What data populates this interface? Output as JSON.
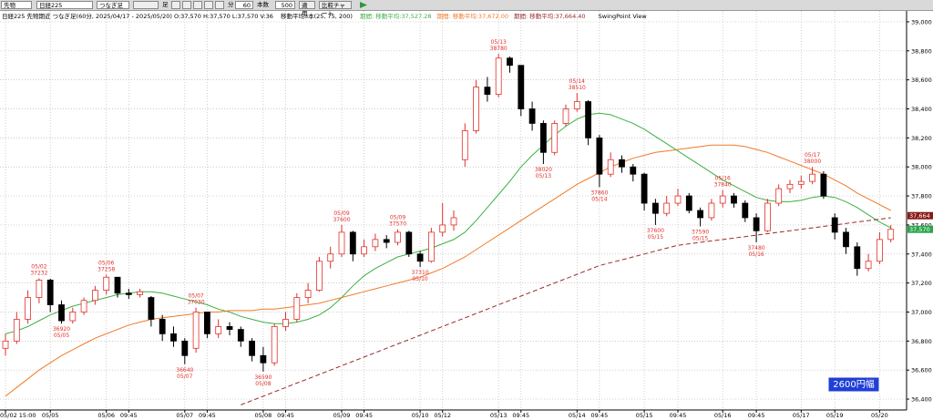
{
  "toolbar": {
    "symbol_kind": "先物",
    "symbol": "日経225",
    "series_kind": "つなぎ足",
    "bar_unit_label": "足",
    "minute_label": "分",
    "period": "60",
    "count_label": "本数",
    "count": "500",
    "apply": "適用",
    "compare": "比較チャート"
  },
  "chart_data": {
    "type": "candlestick",
    "title": "日経225 先物期近 つなぎ足(60分, 2025/04/17 - 2025/05/20) O:37,570 H:37,570 L:37,570 V:36",
    "subtitle": "移動平均3本(25, 75, 200)",
    "view_label": "SwingPoint View",
    "badge": "2600円幅",
    "up_color": "#e0302a",
    "down_color": "#000000",
    "ylim": [
      36325,
      39075
    ],
    "yticks": [
      {
        "value": 36400,
        "label": "36,400"
      },
      {
        "value": 36600,
        "label": "36,600"
      },
      {
        "value": 36800,
        "label": "36,800"
      },
      {
        "value": 37000,
        "label": "37,000"
      },
      {
        "value": 37200,
        "label": "37,200"
      },
      {
        "value": 37400,
        "label": "37,400"
      },
      {
        "value": 37600,
        "label": "37,600"
      },
      {
        "value": 37800,
        "label": "37,800"
      },
      {
        "value": 38000,
        "label": "38,000"
      },
      {
        "value": 38200,
        "label": "38,200"
      },
      {
        "value": 38400,
        "label": "38,400"
      },
      {
        "value": 38600,
        "label": "38,600"
      },
      {
        "value": 38800,
        "label": "38,800"
      },
      {
        "value": 39000,
        "label": "39,000"
      }
    ],
    "grid": true,
    "categories": [
      "05/02 15:00",
      null,
      null,
      null,
      "05/05",
      null,
      null,
      null,
      null,
      "05/06",
      null,
      "09:45",
      null,
      null,
      null,
      null,
      "05/07",
      null,
      "09:45",
      null,
      null,
      null,
      null,
      "05/08",
      null,
      "09:45",
      null,
      null,
      null,
      null,
      "05/09",
      null,
      "09:45",
      null,
      null,
      null,
      null,
      "05/10",
      null,
      "05/12",
      null,
      null,
      null,
      null,
      "05/13",
      null,
      "09:45",
      null,
      null,
      null,
      null,
      "05/14",
      null,
      "09:45",
      null,
      null,
      null,
      "05/15",
      null,
      null,
      "09:45",
      null,
      null,
      null,
      "05/16",
      null,
      null,
      "09:45",
      null,
      null,
      null,
      "05/17",
      null,
      null,
      "05/19",
      null,
      null,
      null,
      "05/20",
      null
    ],
    "candles": [
      {
        "o": 36750,
        "h": 36850,
        "l": 36700,
        "c": 36800
      },
      {
        "o": 36800,
        "h": 37000,
        "l": 36780,
        "c": 36950
      },
      {
        "o": 36950,
        "h": 37150,
        "l": 36920,
        "c": 37100
      },
      {
        "o": 37100,
        "h": 37232,
        "l": 37060,
        "c": 37220,
        "swing": {
          "date": "05/02",
          "price": 37232
        }
      },
      {
        "o": 37220,
        "h": 37230,
        "l": 37000,
        "c": 37050
      },
      {
        "o": 37050,
        "h": 37080,
        "l": 36920,
        "c": 36940,
        "swing": {
          "date": "05/05",
          "price": 36920
        }
      },
      {
        "o": 36940,
        "h": 37030,
        "l": 36920,
        "c": 37000
      },
      {
        "o": 37000,
        "h": 37100,
        "l": 36980,
        "c": 37080
      },
      {
        "o": 37080,
        "h": 37180,
        "l": 37050,
        "c": 37150
      },
      {
        "o": 37150,
        "h": 37258,
        "l": 37120,
        "c": 37240,
        "swing": {
          "date": "05/06",
          "price": 37258
        }
      },
      {
        "o": 37240,
        "h": 37240,
        "l": 37100,
        "c": 37130
      },
      {
        "o": 37130,
        "h": 37160,
        "l": 37090,
        "c": 37120
      },
      {
        "o": 37120,
        "h": 37160,
        "l": 37100,
        "c": 37140
      },
      {
        "o": 37100,
        "h": 37110,
        "l": 36900,
        "c": 36950
      },
      {
        "o": 36950,
        "h": 36980,
        "l": 36800,
        "c": 36850
      },
      {
        "o": 36850,
        "h": 36900,
        "l": 36760,
        "c": 36800
      },
      {
        "o": 36800,
        "h": 36820,
        "l": 36640,
        "c": 36700,
        "swing": {
          "date": "05/07",
          "price": 36640
        }
      },
      {
        "o": 36750,
        "h": 37030,
        "l": 36720,
        "c": 37000,
        "swing": {
          "date": "05/07",
          "price": 37030
        }
      },
      {
        "o": 37000,
        "h": 37000,
        "l": 36820,
        "c": 36850
      },
      {
        "o": 36850,
        "h": 36950,
        "l": 36820,
        "c": 36900
      },
      {
        "o": 36900,
        "h": 36930,
        "l": 36840,
        "c": 36880
      },
      {
        "o": 36880,
        "h": 36900,
        "l": 36760,
        "c": 36800
      },
      {
        "o": 36800,
        "h": 36820,
        "l": 36660,
        "c": 36700
      },
      {
        "o": 36700,
        "h": 36760,
        "l": 36590,
        "c": 36650,
        "swing": {
          "date": "05/08",
          "price": 36590
        }
      },
      {
        "o": 36650,
        "h": 36920,
        "l": 36630,
        "c": 36900
      },
      {
        "o": 36900,
        "h": 37000,
        "l": 36870,
        "c": 36950
      },
      {
        "o": 36950,
        "h": 37130,
        "l": 36930,
        "c": 37100
      },
      {
        "o": 37100,
        "h": 37200,
        "l": 37060,
        "c": 37150
      },
      {
        "o": 37150,
        "h": 37380,
        "l": 37140,
        "c": 37350
      },
      {
        "o": 37350,
        "h": 37450,
        "l": 37300,
        "c": 37400
      },
      {
        "o": 37400,
        "h": 37600,
        "l": 37380,
        "c": 37550,
        "swing": {
          "date": "05/09",
          "price": 37600
        }
      },
      {
        "o": 37550,
        "h": 37560,
        "l": 37350,
        "c": 37400
      },
      {
        "o": 37400,
        "h": 37500,
        "l": 37380,
        "c": 37450
      },
      {
        "o": 37450,
        "h": 37540,
        "l": 37420,
        "c": 37500
      },
      {
        "o": 37500,
        "h": 37530,
        "l": 37440,
        "c": 37480
      },
      {
        "o": 37480,
        "h": 37570,
        "l": 37460,
        "c": 37550,
        "swing": {
          "date": "05/09",
          "price": 37570
        }
      },
      {
        "o": 37550,
        "h": 37560,
        "l": 37380,
        "c": 37400
      },
      {
        "o": 37400,
        "h": 37420,
        "l": 37310,
        "c": 37350,
        "swing": {
          "date": "05/10",
          "price": 37310
        }
      },
      {
        "o": 37350,
        "h": 37580,
        "l": 37340,
        "c": 37550
      },
      {
        "o": 37550,
        "h": 37750,
        "l": 37520,
        "c": 37600
      },
      {
        "o": 37600,
        "h": 37700,
        "l": 37560,
        "c": 37650
      },
      {
        "o": 38050,
        "h": 38300,
        "l": 38000,
        "c": 38250
      },
      {
        "o": 38250,
        "h": 38600,
        "l": 38230,
        "c": 38550
      },
      {
        "o": 38550,
        "h": 38620,
        "l": 38450,
        "c": 38500
      },
      {
        "o": 38500,
        "h": 38780,
        "l": 38480,
        "c": 38750,
        "swing": {
          "date": "05/13",
          "price": 38780
        }
      },
      {
        "o": 38750,
        "h": 38760,
        "l": 38650,
        "c": 38700
      },
      {
        "o": 38700,
        "h": 38700,
        "l": 38350,
        "c": 38400
      },
      {
        "o": 38400,
        "h": 38450,
        "l": 38250,
        "c": 38300
      },
      {
        "o": 38300,
        "h": 38320,
        "l": 38020,
        "c": 38100,
        "swing": {
          "date": "05/13",
          "price": 38020
        }
      },
      {
        "o": 38100,
        "h": 38320,
        "l": 38080,
        "c": 38300
      },
      {
        "o": 38300,
        "h": 38430,
        "l": 38280,
        "c": 38400
      },
      {
        "o": 38400,
        "h": 38510,
        "l": 38380,
        "c": 38450,
        "swing": {
          "date": "05/14",
          "price": 38510
        }
      },
      {
        "o": 38450,
        "h": 38460,
        "l": 38150,
        "c": 38200
      },
      {
        "o": 38200,
        "h": 38220,
        "l": 37860,
        "c": 37950,
        "swing": {
          "date": "05/14",
          "price": 37860
        }
      },
      {
        "o": 37950,
        "h": 38100,
        "l": 37930,
        "c": 38050
      },
      {
        "o": 38050,
        "h": 38080,
        "l": 37960,
        "c": 38000
      },
      {
        "o": 38000,
        "h": 38020,
        "l": 37900,
        "c": 37950
      },
      {
        "o": 37950,
        "h": 37960,
        "l": 37700,
        "c": 37750
      },
      {
        "o": 37750,
        "h": 37780,
        "l": 37600,
        "c": 37680,
        "swing": {
          "date": "05/15",
          "price": 37600
        }
      },
      {
        "o": 37680,
        "h": 37800,
        "l": 37660,
        "c": 37750
      },
      {
        "o": 37750,
        "h": 37850,
        "l": 37730,
        "c": 37800
      },
      {
        "o": 37800,
        "h": 37820,
        "l": 37680,
        "c": 37700
      },
      {
        "o": 37700,
        "h": 37720,
        "l": 37590,
        "c": 37650,
        "swing": {
          "date": "05/15",
          "price": 37590
        }
      },
      {
        "o": 37650,
        "h": 37780,
        "l": 37630,
        "c": 37750
      },
      {
        "o": 37750,
        "h": 37840,
        "l": 37720,
        "c": 37800,
        "swing": {
          "date": "05/16",
          "price": 37840
        }
      },
      {
        "o": 37800,
        "h": 37820,
        "l": 37720,
        "c": 37750
      },
      {
        "o": 37750,
        "h": 37770,
        "l": 37620,
        "c": 37650
      },
      {
        "o": 37650,
        "h": 37680,
        "l": 37480,
        "c": 37560,
        "swing": {
          "date": "05/16",
          "price": 37480
        }
      },
      {
        "o": 37560,
        "h": 37780,
        "l": 37550,
        "c": 37750
      },
      {
        "o": 37750,
        "h": 37880,
        "l": 37730,
        "c": 37850
      },
      {
        "o": 37850,
        "h": 37910,
        "l": 37820,
        "c": 37880
      },
      {
        "o": 37880,
        "h": 37940,
        "l": 37850,
        "c": 37900
      },
      {
        "o": 37900,
        "h": 38000,
        "l": 37880,
        "c": 37950,
        "swing": {
          "date": "05/17",
          "price": 38000
        }
      },
      {
        "o": 37950,
        "h": 37970,
        "l": 37780,
        "c": 37800
      },
      {
        "o": 37650,
        "h": 37680,
        "l": 37500,
        "c": 37550
      },
      {
        "o": 37550,
        "h": 37580,
        "l": 37400,
        "c": 37450
      },
      {
        "o": 37450,
        "h": 37480,
        "l": 37250,
        "c": 37300
      },
      {
        "o": 37300,
        "h": 37400,
        "l": 37280,
        "c": 37350
      },
      {
        "o": 37350,
        "h": 37550,
        "l": 37330,
        "c": 37500
      },
      {
        "o": 37500,
        "h": 37600,
        "l": 37480,
        "c": 37570
      }
    ],
    "series": [
      {
        "name": "期間: 移動平均:37,527.28",
        "color": "#3cb043",
        "dashed": false,
        "values": [
          36850,
          36870,
          36900,
          36940,
          36980,
          37010,
          37040,
          37060,
          37080,
          37100,
          37120,
          37130,
          37140,
          37140,
          37130,
          37110,
          37090,
          37070,
          37050,
          37020,
          37000,
          36970,
          36950,
          36930,
          36920,
          36920,
          36930,
          36950,
          36980,
          37030,
          37100,
          37180,
          37250,
          37300,
          37340,
          37380,
          37400,
          37420,
          37440,
          37470,
          37500,
          37550,
          37630,
          37720,
          37810,
          37900,
          38000,
          38080,
          38150,
          38220,
          38280,
          38330,
          38360,
          38370,
          38360,
          38330,
          38300,
          38260,
          38210,
          38160,
          38110,
          38060,
          38010,
          37960,
          37910,
          37870,
          37830,
          37790,
          37770,
          37760,
          37760,
          37770,
          37790,
          37800,
          37790,
          37760,
          37720,
          37670,
          37620,
          37580
        ]
      },
      {
        "name": "期間: 移動平均:37,672.00",
        "color": "#f07a2a",
        "dashed": false,
        "values": [
          36420,
          36480,
          36540,
          36600,
          36650,
          36700,
          36740,
          36780,
          36820,
          36850,
          36880,
          36910,
          36930,
          36950,
          36960,
          36970,
          36980,
          36990,
          37000,
          37000,
          37010,
          37010,
          37010,
          37020,
          37020,
          37030,
          37040,
          37050,
          37060,
          37080,
          37100,
          37120,
          37140,
          37160,
          37180,
          37200,
          37220,
          37240,
          37270,
          37300,
          37340,
          37380,
          37430,
          37480,
          37530,
          37580,
          37630,
          37680,
          37730,
          37780,
          37830,
          37880,
          37920,
          37960,
          38000,
          38030,
          38060,
          38080,
          38100,
          38110,
          38120,
          38130,
          38140,
          38150,
          38150,
          38150,
          38140,
          38120,
          38100,
          38070,
          38040,
          38010,
          37980,
          37950,
          37910,
          37870,
          37820,
          37780,
          37740,
          37700
        ]
      },
      {
        "name": "期間: 移動平均:37,664.40",
        "color": "#9b2a2a",
        "dashed": true,
        "values": [
          null,
          null,
          null,
          null,
          null,
          null,
          null,
          null,
          null,
          null,
          null,
          null,
          null,
          null,
          null,
          null,
          null,
          null,
          null,
          null,
          null,
          36360,
          36390,
          36420,
          36450,
          36480,
          36510,
          36540,
          36570,
          36600,
          36630,
          36660,
          36690,
          36720,
          36750,
          36780,
          36810,
          36840,
          36870,
          36900,
          36930,
          36960,
          36990,
          37020,
          37050,
          37080,
          37110,
          37140,
          37170,
          37200,
          37230,
          37260,
          37290,
          37320,
          37340,
          37360,
          37380,
          37400,
          37420,
          37440,
          37460,
          37470,
          37480,
          37490,
          37500,
          37510,
          37520,
          37530,
          37540,
          37550,
          37560,
          37570,
          37580,
          37590,
          37600,
          37610,
          37620,
          37630,
          37640,
          37650
        ]
      }
    ],
    "price_tags": [
      {
        "value": 37664,
        "label": "37,664",
        "color": "#8b1a1a"
      },
      {
        "value": 37570,
        "label": "37,570",
        "color": "#2aa44a"
      }
    ]
  }
}
